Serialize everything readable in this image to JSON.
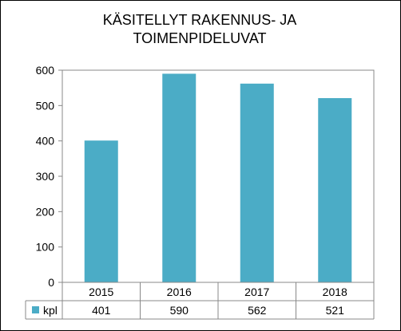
{
  "chart_data": {
    "type": "bar",
    "title_lines": [
      "KÄSITELLYT RAKENNUS-  JA",
      "TOIMENPIDELUVAT"
    ],
    "categories": [
      "2015",
      "2016",
      "2017",
      "2018"
    ],
    "series": [
      {
        "name": "kpl",
        "values": [
          401,
          590,
          562,
          521
        ],
        "color": "#4BACC6"
      }
    ],
    "ylim": [
      0,
      600
    ],
    "yticks": [
      0,
      100,
      200,
      300,
      400,
      500,
      600
    ],
    "grid": false,
    "legend": "data-table"
  }
}
